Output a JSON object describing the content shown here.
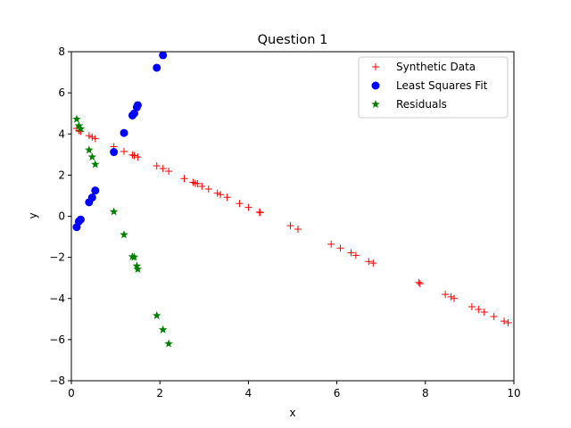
{
  "chart_data": {
    "type": "scatter",
    "title": "Question 1",
    "xlabel": "x",
    "ylabel": "y",
    "xlim": [
      0,
      10
    ],
    "ylim": [
      -8,
      8
    ],
    "xticks": [
      "0",
      "2",
      "4",
      "6",
      "8",
      "10"
    ],
    "yticks": [
      "−8",
      "−6",
      "−4",
      "−2",
      "0",
      "2",
      "4",
      "6",
      "8"
    ],
    "grid": false,
    "legend_position": "top-right",
    "series": [
      {
        "name": "Synthetic Data",
        "color": "#ff0000",
        "marker": "plus",
        "points": [
          [
            0.12,
            4.27
          ],
          [
            0.17,
            4.17
          ],
          [
            0.21,
            4.13
          ],
          [
            0.4,
            3.92
          ],
          [
            0.47,
            3.85
          ],
          [
            0.54,
            3.78
          ],
          [
            0.96,
            3.38
          ],
          [
            1.19,
            3.15
          ],
          [
            1.38,
            2.98
          ],
          [
            1.42,
            2.95
          ],
          [
            1.5,
            2.88
          ],
          [
            1.93,
            2.45
          ],
          [
            2.07,
            2.32
          ],
          [
            2.2,
            2.19
          ],
          [
            2.55,
            1.83
          ],
          [
            2.75,
            1.65
          ],
          [
            2.8,
            1.6
          ],
          [
            2.85,
            1.58
          ],
          [
            2.95,
            1.45
          ],
          [
            3.1,
            1.32
          ],
          [
            3.3,
            1.12
          ],
          [
            3.37,
            1.05
          ],
          [
            3.52,
            0.92
          ],
          [
            3.8,
            0.62
          ],
          [
            4.0,
            0.43
          ],
          [
            4.25,
            0.2
          ],
          [
            4.27,
            0.18
          ],
          [
            4.95,
            -0.46
          ],
          [
            5.12,
            -0.63
          ],
          [
            5.87,
            -1.36
          ],
          [
            6.08,
            -1.55
          ],
          [
            6.32,
            -1.78
          ],
          [
            6.43,
            -1.9
          ],
          [
            6.72,
            -2.2
          ],
          [
            6.82,
            -2.28
          ],
          [
            7.85,
            -3.22
          ],
          [
            7.88,
            -3.28
          ],
          [
            8.45,
            -3.8
          ],
          [
            8.58,
            -3.92
          ],
          [
            8.65,
            -4.0
          ],
          [
            9.05,
            -4.4
          ],
          [
            9.2,
            -4.53
          ],
          [
            9.33,
            -4.66
          ],
          [
            9.55,
            -4.88
          ],
          [
            9.78,
            -5.1
          ],
          [
            9.87,
            -5.18
          ]
        ]
      },
      {
        "name": "Least Squares Fit",
        "color": "#0000ff",
        "marker": "circle",
        "points": [
          [
            0.12,
            -0.53
          ],
          [
            0.17,
            -0.25
          ],
          [
            0.21,
            -0.16
          ],
          [
            0.4,
            0.68
          ],
          [
            0.47,
            0.91
          ],
          [
            0.54,
            1.25
          ],
          [
            0.96,
            3.12
          ],
          [
            1.19,
            4.05
          ],
          [
            1.38,
            4.9
          ],
          [
            1.42,
            5.0
          ],
          [
            1.48,
            5.3
          ],
          [
            1.5,
            5.4
          ],
          [
            1.93,
            7.22
          ],
          [
            2.07,
            7.83
          ]
        ]
      },
      {
        "name": "Residuals",
        "color": "#008000",
        "marker": "star",
        "points": [
          [
            0.12,
            4.72
          ],
          [
            0.17,
            4.4
          ],
          [
            0.21,
            4.25
          ],
          [
            0.4,
            3.22
          ],
          [
            0.47,
            2.88
          ],
          [
            0.54,
            2.52
          ],
          [
            0.96,
            0.22
          ],
          [
            1.19,
            -0.9
          ],
          [
            1.38,
            -1.97
          ],
          [
            1.42,
            -1.99
          ],
          [
            1.48,
            -2.42
          ],
          [
            1.5,
            -2.58
          ],
          [
            1.93,
            -4.83
          ],
          [
            2.07,
            -5.52
          ],
          [
            2.2,
            -6.2
          ]
        ]
      }
    ]
  }
}
